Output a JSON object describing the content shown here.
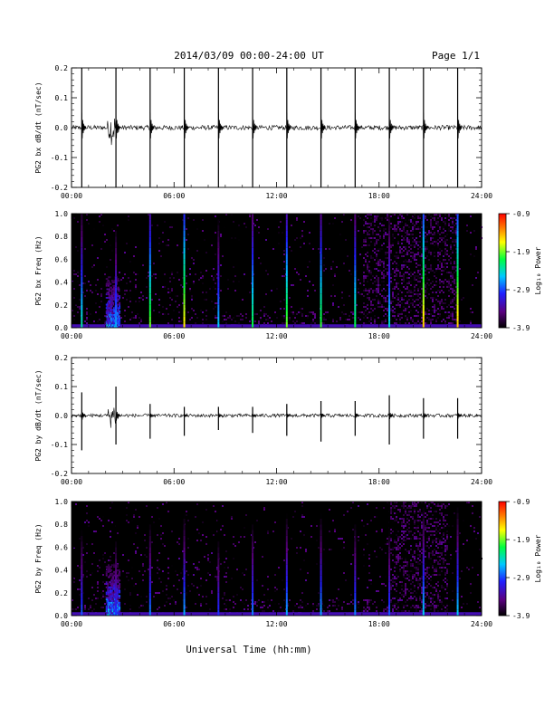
{
  "header": {
    "title": "2014/03/09  00:00-24:00 UT",
    "page": "Page 1/1"
  },
  "xaxis_title": "Universal Time (hh:mm)",
  "colorbar": {
    "label": "Log₁₀ Power",
    "ticks": [
      "-0.9",
      "-1.9",
      "-2.9",
      "-3.9"
    ],
    "range": [
      -3.9,
      -0.9
    ]
  },
  "colors": {
    "trace": "#000000",
    "spectrogram_bg": "#000000",
    "scale": [
      "#000000",
      "#5a0080",
      "#2020ff",
      "#00c8ff",
      "#00ff40",
      "#ffff00",
      "#ff8000",
      "#ff0000"
    ]
  },
  "chart_data": [
    {
      "type": "line",
      "ylabel": "PG2 bx dB/dt (nT/sec)",
      "xlim": [
        0,
        24
      ],
      "ylim": [
        -0.2,
        0.2
      ],
      "xticks": [
        "00:00",
        "06:00",
        "12:00",
        "18:00",
        "24:00"
      ],
      "yticks": [
        "0.2",
        "0.1",
        "0.0",
        "-0.1",
        "-0.2"
      ],
      "background_noise_amplitude": 0.008,
      "burst": {
        "start": 2.0,
        "end": 2.8,
        "amplitude": 0.06
      },
      "spikes": [
        {
          "t": 0.6,
          "min": -0.2,
          "max": 0.2
        },
        {
          "t": 2.6,
          "min": -0.2,
          "max": 0.2
        },
        {
          "t": 4.6,
          "min": -0.2,
          "max": 0.2
        },
        {
          "t": 6.6,
          "min": -0.2,
          "max": 0.2
        },
        {
          "t": 8.6,
          "min": -0.2,
          "max": 0.2
        },
        {
          "t": 10.6,
          "min": -0.2,
          "max": 0.2
        },
        {
          "t": 12.6,
          "min": -0.2,
          "max": 0.2
        },
        {
          "t": 14.6,
          "min": -0.2,
          "max": 0.2
        },
        {
          "t": 16.6,
          "min": -0.2,
          "max": 0.2
        },
        {
          "t": 18.6,
          "min": -0.2,
          "max": 0.2
        },
        {
          "t": 20.6,
          "min": -0.2,
          "max": 0.2
        },
        {
          "t": 22.6,
          "min": -0.2,
          "max": 0.2
        }
      ]
    },
    {
      "type": "heatmap",
      "ylabel": "PG2 bx Freq (Hz)",
      "xlim": [
        0,
        24
      ],
      "ylim": [
        0,
        1.0
      ],
      "xticks": [
        "00:00",
        "06:00",
        "12:00",
        "18:00",
        "24:00"
      ],
      "yticks": [
        "1.0",
        "0.8",
        "0.6",
        "0.4",
        "0.2",
        "0.0"
      ],
      "stripe_times": [
        0.6,
        2.6,
        4.6,
        6.6,
        8.6,
        10.6,
        12.6,
        14.6,
        16.6,
        18.6,
        20.6,
        22.6
      ],
      "stripe_max_log_power": [
        -2.4,
        -2.7,
        -2.0,
        -1.7,
        -2.6,
        -2.2,
        -2.0,
        -2.1,
        -2.2,
        -2.5,
        -1.6,
        -1.6
      ],
      "burst": {
        "start": 2.0,
        "end": 2.8,
        "fmax": 0.45
      },
      "activity_region": {
        "start": 17.0,
        "end": 22.5,
        "fmax": 1.0
      }
    },
    {
      "type": "line",
      "ylabel": "PG2 by dB/dt (nT/sec)",
      "xlim": [
        0,
        24
      ],
      "ylim": [
        -0.2,
        0.2
      ],
      "xticks": [
        "00:00",
        "06:00",
        "12:00",
        "18:00",
        "24:00"
      ],
      "yticks": [
        "0.2",
        "0.1",
        "0.0",
        "-0.1",
        "-0.2"
      ],
      "background_noise_amplitude": 0.006,
      "burst": {
        "start": 2.0,
        "end": 2.8,
        "amplitude": 0.05
      },
      "spikes": [
        {
          "t": 0.6,
          "min": -0.12,
          "max": 0.08
        },
        {
          "t": 2.6,
          "min": -0.1,
          "max": 0.1
        },
        {
          "t": 4.6,
          "min": -0.08,
          "max": 0.04
        },
        {
          "t": 6.6,
          "min": -0.07,
          "max": 0.03
        },
        {
          "t": 8.6,
          "min": -0.05,
          "max": 0.03
        },
        {
          "t": 10.6,
          "min": -0.06,
          "max": 0.03
        },
        {
          "t": 12.6,
          "min": -0.07,
          "max": 0.04
        },
        {
          "t": 14.6,
          "min": -0.09,
          "max": 0.05
        },
        {
          "t": 16.6,
          "min": -0.07,
          "max": 0.05
        },
        {
          "t": 18.6,
          "min": -0.1,
          "max": 0.07
        },
        {
          "t": 20.6,
          "min": -0.08,
          "max": 0.06
        },
        {
          "t": 22.6,
          "min": -0.08,
          "max": 0.06
        }
      ]
    },
    {
      "type": "heatmap",
      "ylabel": "PG2 by Freq (Hz)",
      "xlim": [
        0,
        24
      ],
      "ylim": [
        0,
        1.0
      ],
      "xticks": [
        "00:00",
        "06:00",
        "12:00",
        "18:00",
        "24:00"
      ],
      "yticks": [
        "1.0",
        "0.8",
        "0.6",
        "0.4",
        "0.2",
        "0.0"
      ],
      "stripe_times": [
        0.6,
        2.6,
        4.6,
        6.6,
        8.6,
        10.6,
        12.6,
        14.6,
        16.6,
        18.6,
        20.6,
        22.6
      ],
      "stripe_max_log_power": [
        -2.9,
        -3.0,
        -2.8,
        -2.7,
        -3.0,
        -2.8,
        -2.7,
        -2.7,
        -2.8,
        -2.9,
        -2.6,
        -2.6
      ],
      "burst": {
        "start": 2.0,
        "end": 2.8,
        "fmax": 0.45
      },
      "activity_region": {
        "start": 18.5,
        "end": 22.0,
        "fmax": 1.0
      }
    }
  ]
}
